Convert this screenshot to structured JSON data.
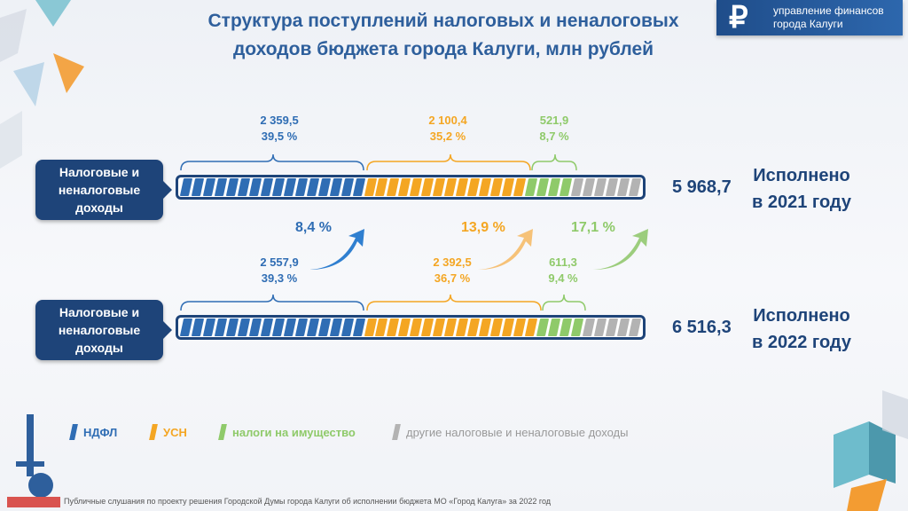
{
  "title_line1": "Структура поступлений налоговых и неналоговых",
  "title_line2": "доходов бюджета города Калуги, млн рублей",
  "brand": {
    "line1": "управление финансов",
    "line2": "города Калуги",
    "icon": "ruble-icon"
  },
  "rows": [
    {
      "label_l1": "Налоговые и",
      "label_l2": "неналоговые",
      "label_l3": "доходы",
      "total": "5 968,7",
      "year_l1": "Исполнено",
      "year_l2": "в 2021 году",
      "ndfl_val": "2 359,5",
      "ndfl_pct": "39,5 %",
      "usn_val": "2 100,4",
      "usn_pct": "35,2 %",
      "prop_val": "521,9",
      "prop_pct": "8,7 %",
      "segments": {
        "blue": 16,
        "orange": 14,
        "green": 4,
        "gray": 6
      }
    },
    {
      "label_l1": "Налоговые и",
      "label_l2": "неналоговые",
      "label_l3": "доходы",
      "total": "6 516,3",
      "year_l1": "Исполнено",
      "year_l2": "в 2022 году",
      "ndfl_val": "2 557,9",
      "ndfl_pct": "39,3 %",
      "usn_val": "2 392,5",
      "usn_pct": "36,7 %",
      "prop_val": "611,3",
      "prop_pct": "9,4 %",
      "segments": {
        "blue": 16,
        "orange": 15,
        "green": 4,
        "gray": 5
      }
    }
  ],
  "growth": {
    "ndfl": "8,4 %",
    "usn": "13,9 %",
    "prop": "17,1 %"
  },
  "legend": {
    "ndfl": "НДФЛ",
    "usn": "УСН",
    "prop": "налоги на имущество",
    "other": "другие налоговые и неналоговые доходы"
  },
  "colors": {
    "blue": "#2f6db4",
    "orange": "#f4a623",
    "green": "#8fca6a",
    "gray": "#b3b3b3"
  },
  "footnote": "Публичные слушания по проекту решения Городской Думы города Калуги об исполнении бюджета МО «Город Калуга» за 2022 год"
}
